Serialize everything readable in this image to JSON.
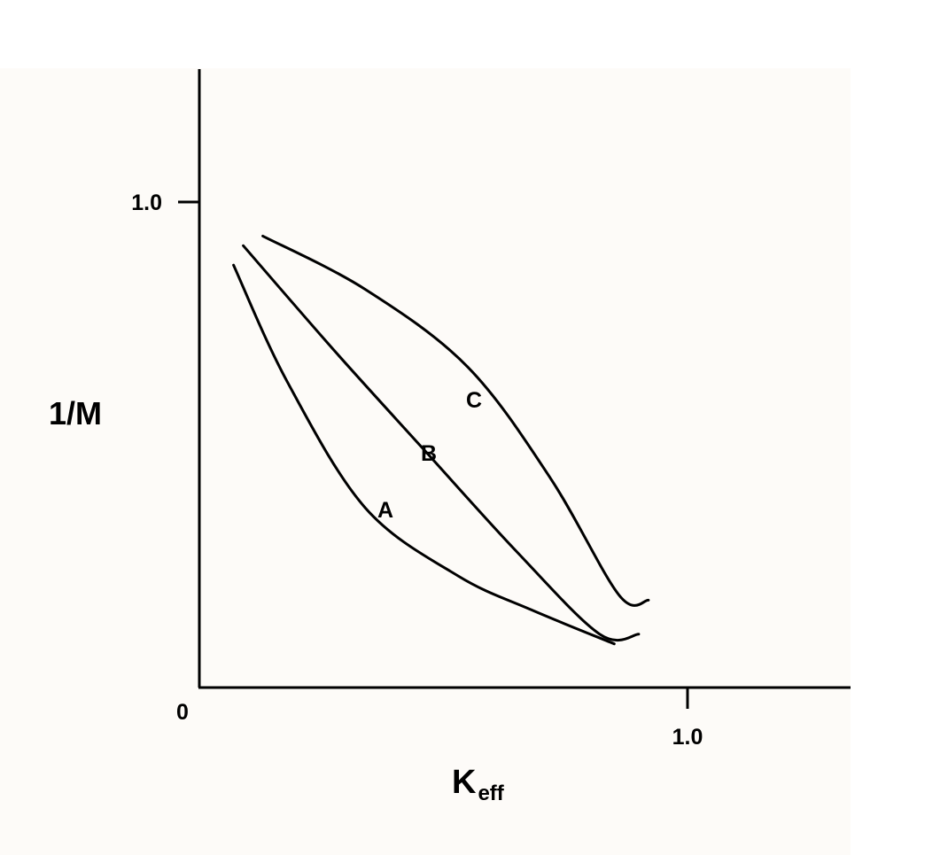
{
  "chart_data": {
    "type": "line",
    "xlabel_main": "K",
    "xlabel_sub": "eff",
    "ylabel": "1/M",
    "origin_label": "0",
    "x_ticks": [
      {
        "value": 1.0,
        "label": "1.0"
      }
    ],
    "y_ticks": [
      {
        "value": 1.0,
        "label": "1.0"
      }
    ],
    "xlim": [
      0,
      1.34
    ],
    "ylim": [
      0,
      1.27
    ],
    "grid": false,
    "series": [
      {
        "name": "A",
        "points": [
          [
            0.07,
            0.87
          ],
          [
            0.18,
            0.63
          ],
          [
            0.34,
            0.37
          ],
          [
            0.53,
            0.23
          ],
          [
            0.68,
            0.16
          ],
          [
            0.85,
            0.09
          ]
        ]
      },
      {
        "name": "B",
        "points": [
          [
            0.09,
            0.91
          ],
          [
            0.28,
            0.69
          ],
          [
            0.46,
            0.49
          ],
          [
            0.65,
            0.28
          ],
          [
            0.82,
            0.11
          ],
          [
            0.9,
            0.11
          ]
        ]
      },
      {
        "name": "C",
        "points": [
          [
            0.13,
            0.93
          ],
          [
            0.34,
            0.82
          ],
          [
            0.55,
            0.66
          ],
          [
            0.72,
            0.43
          ],
          [
            0.86,
            0.19
          ],
          [
            0.92,
            0.18
          ]
        ]
      }
    ],
    "colors": {
      "line": "#000000",
      "plot_background": "#fdfbf8"
    }
  }
}
